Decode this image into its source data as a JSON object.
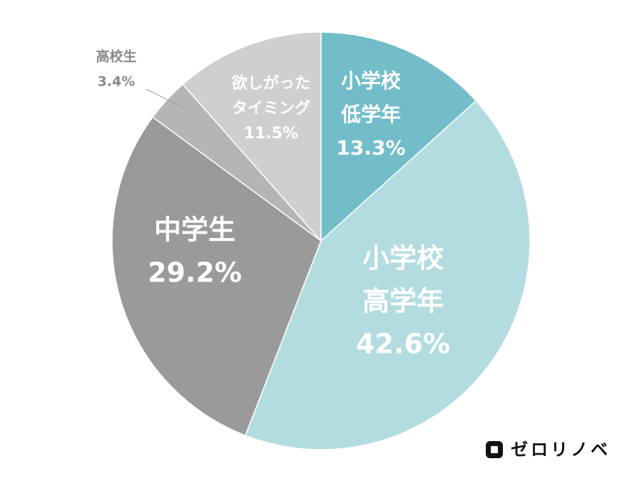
{
  "chart_data": {
    "type": "pie",
    "categories": [
      [
        "小学校",
        "低学年"
      ],
      [
        "小学校",
        "高学年"
      ],
      [
        "中学生"
      ],
      [
        "高校生"
      ],
      [
        "欲しがった",
        "タイミング"
      ]
    ],
    "values": [
      13.3,
      42.6,
      29.2,
      3.4,
      11.5
    ],
    "value_labels": [
      "13.3%",
      "42.6%",
      "29.2%",
      "3.4%",
      "11.5%"
    ],
    "colors": [
      "#72bdc9",
      "#b3dce1",
      "#9a9a9a",
      "#b5b5b5",
      "#cfcfcf"
    ]
  },
  "logo": "ゼロリノベ"
}
